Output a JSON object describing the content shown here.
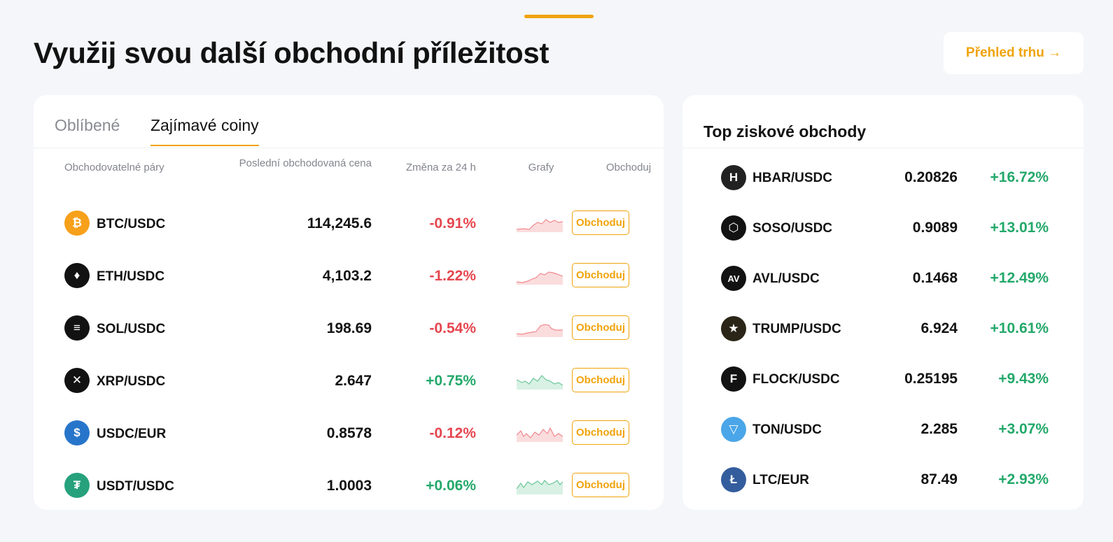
{
  "header": {
    "title": "Využij svou další obchodní příležitost",
    "overview_label": "Přehled trhu →"
  },
  "left": {
    "tabs": [
      {
        "label": "Oblíbené",
        "active": false
      },
      {
        "label": "Zajímavé coiny",
        "active": true
      }
    ],
    "columns": {
      "pair": "Obchodovatelné páry",
      "price": "Poslední obchodovaná cena",
      "change": "Změna za 24 h",
      "chart": "Grafy",
      "trade": "Obchoduj"
    },
    "rows": [
      {
        "pair": "BTC/USDC",
        "price": "114,245.6",
        "change": "-0.91%",
        "trend": "neg",
        "icon": "bitcoin-icon",
        "icon_color": "#f7a01a",
        "icon_glyph": "₿",
        "trade": "Obchoduj"
      },
      {
        "pair": "ETH/USDC",
        "price": "4,103.2",
        "change": "-1.22%",
        "trend": "neg",
        "icon": "ethereum-icon",
        "icon_color": "#121212",
        "icon_glyph": "♦",
        "trade": "Obchoduj"
      },
      {
        "pair": "SOL/USDC",
        "price": "198.69",
        "change": "-0.54%",
        "trend": "neg",
        "icon": "solana-icon",
        "icon_color": "#121212",
        "icon_glyph": "≡",
        "trade": "Obchoduj"
      },
      {
        "pair": "XRP/USDC",
        "price": "2.647",
        "change": "+0.75%",
        "trend": "pos",
        "icon": "xrp-icon",
        "icon_color": "#121212",
        "icon_glyph": "✕",
        "trade": "Obchoduj"
      },
      {
        "pair": "USDC/EUR",
        "price": "0.8578",
        "change": "-0.12%",
        "trend": "neg",
        "icon": "usdc-icon",
        "icon_color": "#2775ca",
        "icon_glyph": "$",
        "trade": "Obchoduj"
      },
      {
        "pair": "USDT/USDC",
        "price": "1.0003",
        "change": "+0.06%",
        "trend": "pos",
        "icon": "tether-icon",
        "icon_color": "#26a17b",
        "icon_glyph": "₮",
        "trade": "Obchoduj"
      }
    ]
  },
  "right": {
    "title": "Top ziskové obchody",
    "rows": [
      {
        "pair": "HBAR/USDC",
        "price": "0.20826",
        "change": "+16.72%",
        "icon": "hedera-icon",
        "icon_color": "#222222",
        "icon_glyph": "H"
      },
      {
        "pair": "SOSO/USDC",
        "price": "0.9089",
        "change": "+13.01%",
        "icon": "soso-icon",
        "icon_color": "#121212",
        "icon_glyph": "⬡"
      },
      {
        "pair": "AVL/USDC",
        "price": "0.1468",
        "change": "+12.49%",
        "icon": "avail-icon",
        "icon_color": "#121212",
        "icon_glyph": "AV"
      },
      {
        "pair": "TRUMP/USDC",
        "price": "6.924",
        "change": "+10.61%",
        "icon": "trump-icon",
        "icon_color": "#2a2517",
        "icon_glyph": "★"
      },
      {
        "pair": "FLOCK/USDC",
        "price": "0.25195",
        "change": "+9.43%",
        "icon": "flock-icon",
        "icon_color": "#121212",
        "icon_glyph": "F"
      },
      {
        "pair": "TON/USDC",
        "price": "2.285",
        "change": "+3.07%",
        "icon": "ton-icon",
        "icon_color": "#4aa6e8",
        "icon_glyph": "▽"
      },
      {
        "pair": "LTC/EUR",
        "price": "87.49",
        "change": "+2.93%",
        "icon": "litecoin-icon",
        "icon_color": "#345d9d",
        "icon_glyph": "Ł"
      }
    ]
  },
  "colors": {
    "accent": "#f0a30a",
    "positive": "#23a86a",
    "negative": "#e5464f"
  }
}
